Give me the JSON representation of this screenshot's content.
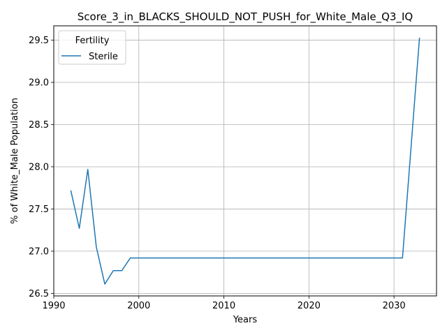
{
  "chart_data": {
    "type": "line",
    "title": "Score_3_in_BLACKS_SHOULD_NOT_PUSH_for_White_Male_Q3_IQ",
    "xlabel": "Years",
    "ylabel": "% of White_Male Population",
    "xlim": [
      1990,
      2035
    ],
    "ylim": [
      26.47,
      29.67
    ],
    "xticks": [
      1990,
      2000,
      2010,
      2020,
      2030
    ],
    "yticks": [
      26.5,
      27.0,
      27.5,
      28.0,
      28.5,
      29.0,
      29.5
    ],
    "grid": true,
    "legend": {
      "title": "Fertility",
      "placement": "top-left"
    },
    "series": [
      {
        "name": "Sterile",
        "color": "#1f77b4",
        "x": [
          1992,
          1993,
          1994,
          1995,
          1996,
          1997,
          1998,
          1999,
          2000,
          2005,
          2010,
          2015,
          2020,
          2025,
          2030,
          2031,
          2033
        ],
        "y": [
          27.72,
          27.27,
          27.97,
          27.05,
          26.61,
          26.77,
          26.77,
          26.92,
          26.92,
          26.92,
          26.92,
          26.92,
          26.92,
          26.92,
          26.92,
          26.92,
          29.53
        ]
      }
    ]
  }
}
